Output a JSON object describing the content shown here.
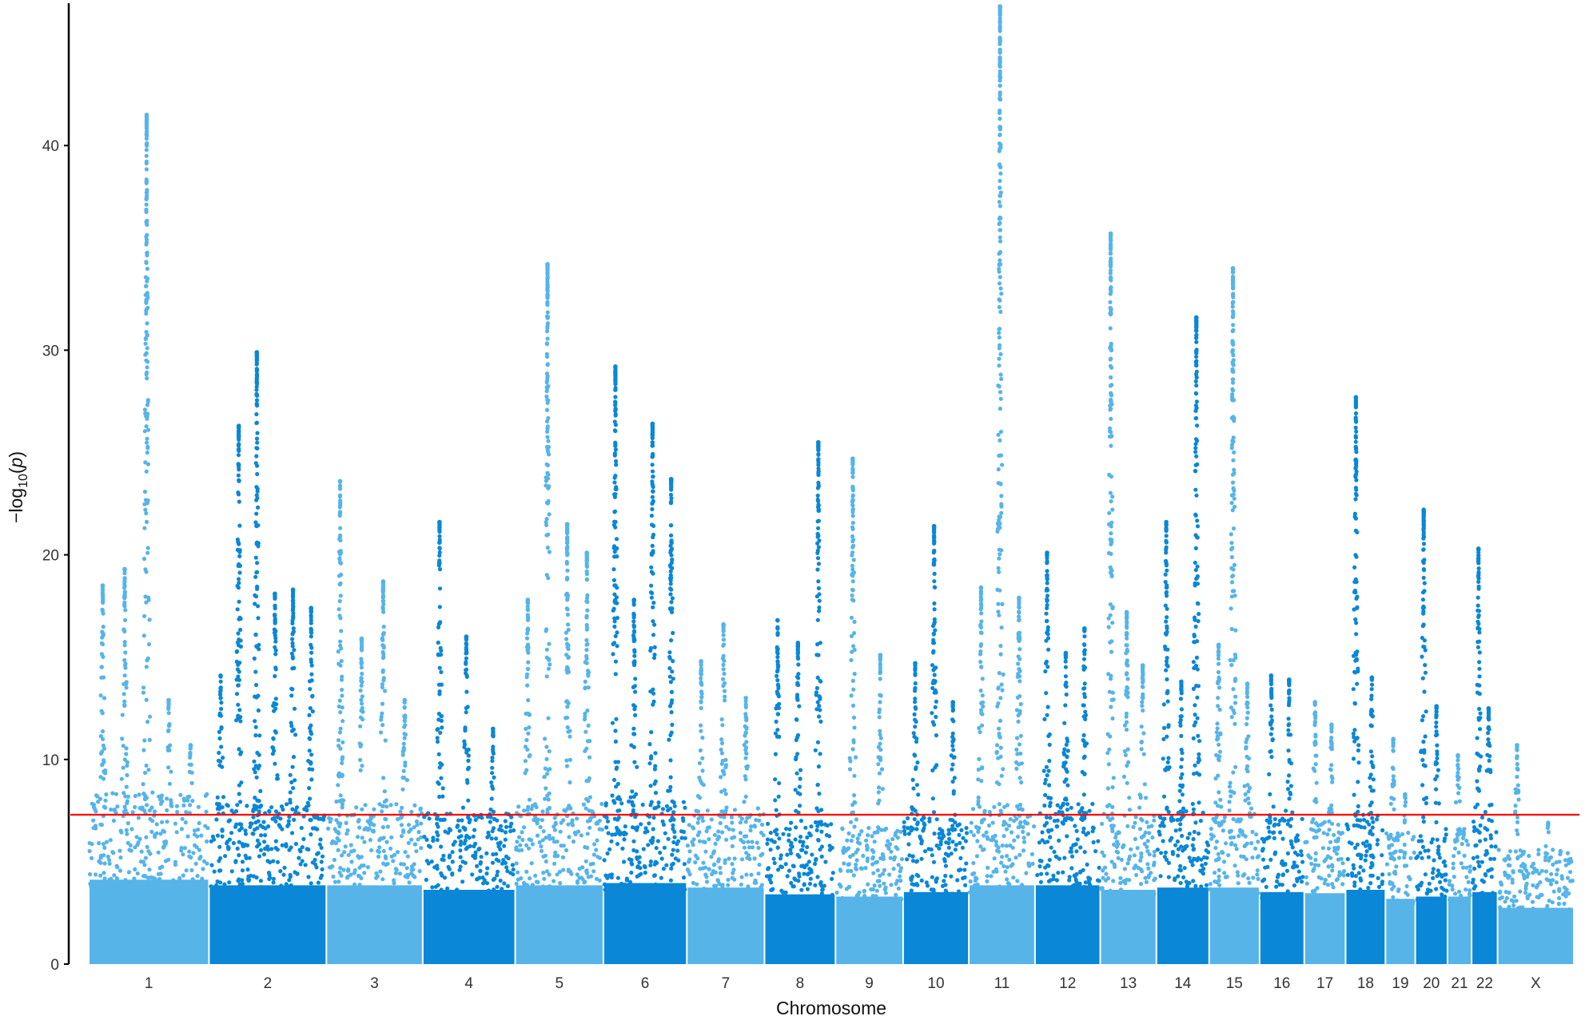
{
  "chart_data": {
    "type": "scatter",
    "subtype": "manhattan",
    "title": "",
    "xlabel": "Chromosome",
    "ylabel": "−log10(p)",
    "ylim": [
      0,
      46.8
    ],
    "y_ticks": [
      0,
      10,
      20,
      30,
      40
    ],
    "grid": false,
    "legend": "none",
    "significance_line": {
      "value": 7.3,
      "color": "#ff0000"
    },
    "colors": {
      "odd": "#56b4e9",
      "even": "#0a87d6"
    },
    "chromosomes": [
      {
        "label": "1",
        "base": 7.5,
        "peaks": [
          18.5,
          19.3,
          41.5,
          12.9,
          10.7
        ]
      },
      {
        "label": "2",
        "base": 7.0,
        "peaks": [
          14.1,
          26.3,
          29.9,
          18.1,
          18.3,
          17.4
        ]
      },
      {
        "label": "3",
        "base": 7.0,
        "peaks": [
          23.6,
          15.9,
          18.7,
          12.9
        ]
      },
      {
        "label": "4",
        "base": 6.6,
        "peaks": [
          21.6,
          16.0,
          11.5
        ]
      },
      {
        "label": "5",
        "base": 7.0,
        "peaks": [
          17.8,
          34.2,
          21.5,
          20.1
        ]
      },
      {
        "label": "6",
        "base": 7.2,
        "peaks": [
          29.2,
          17.8,
          26.4,
          23.7
        ]
      },
      {
        "label": "7",
        "base": 6.8,
        "peaks": [
          14.8,
          16.6,
          13.0
        ]
      },
      {
        "label": "8",
        "base": 6.2,
        "peaks": [
          16.8,
          15.7,
          25.5
        ]
      },
      {
        "label": "9",
        "base": 6.0,
        "peaks": [
          24.7,
          15.1
        ]
      },
      {
        "label": "10",
        "base": 6.4,
        "peaks": [
          14.7,
          21.4,
          12.8
        ]
      },
      {
        "label": "11",
        "base": 7.0,
        "peaks": [
          18.4,
          46.8,
          17.9
        ]
      },
      {
        "label": "12",
        "base": 7.0,
        "peaks": [
          20.1,
          15.2,
          16.4
        ]
      },
      {
        "label": "13",
        "base": 6.6,
        "peaks": [
          35.7,
          17.2,
          14.6
        ]
      },
      {
        "label": "14",
        "base": 6.8,
        "peaks": [
          21.6,
          13.8,
          31.6
        ]
      },
      {
        "label": "15",
        "base": 6.8,
        "peaks": [
          15.6,
          34.0,
          13.7
        ]
      },
      {
        "label": "16",
        "base": 6.4,
        "peaks": [
          14.1,
          13.9
        ]
      },
      {
        "label": "17",
        "base": 6.3,
        "peaks": [
          12.8,
          11.7
        ]
      },
      {
        "label": "18",
        "base": 6.6,
        "peaks": [
          27.7,
          14.0
        ]
      },
      {
        "label": "19",
        "base": 5.8,
        "peaks": [
          11.0,
          8.3
        ]
      },
      {
        "label": "20",
        "base": 6.0,
        "peaks": [
          22.2,
          12.6
        ]
      },
      {
        "label": "21",
        "base": 6.0,
        "peaks": [
          10.2
        ]
      },
      {
        "label": "22",
        "base": 6.4,
        "peaks": [
          20.3,
          12.5
        ]
      },
      {
        "label": "X",
        "base": 5.0,
        "peaks": [
          10.7,
          6.9
        ]
      }
    ]
  }
}
